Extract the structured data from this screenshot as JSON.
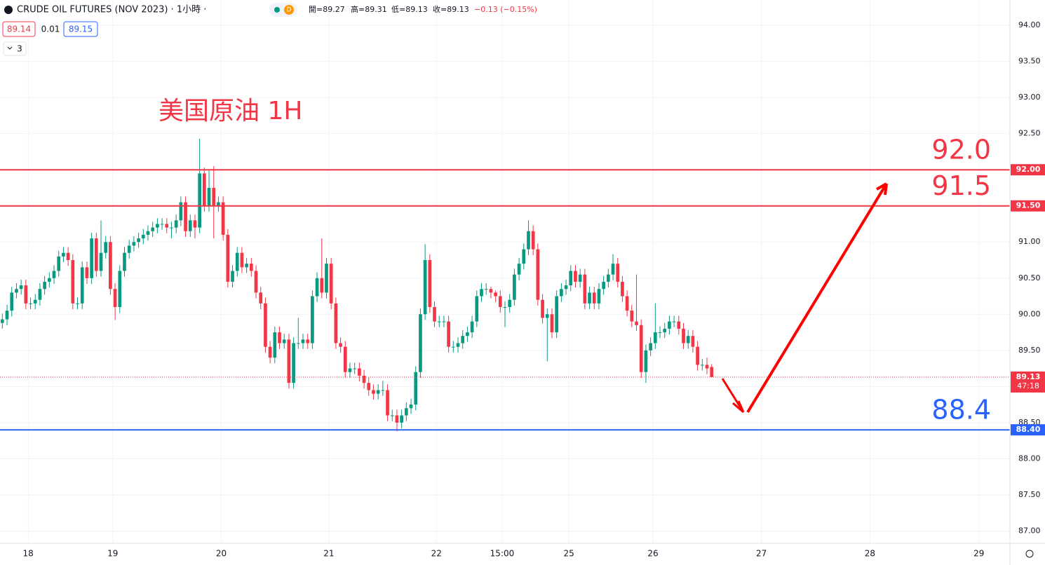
{
  "header": {
    "symbol": "CRUDE OIL FUTURES (NOV 2023) · 1小時 ·",
    "badge": "D",
    "open": "開=89.27",
    "high": "高=89.31",
    "low": "低=89.13",
    "close": "收=89.13",
    "change": "−0.13 (−0.15%)",
    "bid": "89.14",
    "spread": "0.01",
    "ask": "89.15",
    "indicators": "3"
  },
  "chart_data": {
    "type": "candlestick",
    "title": "美国原油 1H",
    "up_color": "#089981",
    "down_color": "#f23645",
    "grid": true,
    "x": [
      0,
      1,
      2,
      3,
      4,
      5,
      6,
      7,
      8,
      9,
      10,
      11,
      12,
      13,
      14,
      15,
      16,
      17,
      18,
      19,
      20,
      21,
      22,
      23,
      24,
      25,
      26,
      27,
      28,
      29,
      30,
      31,
      32,
      33,
      34,
      35,
      36,
      37,
      38,
      39,
      40,
      41,
      42,
      43,
      44,
      45,
      46,
      47,
      48,
      49,
      50,
      51,
      52,
      53,
      54,
      55,
      56,
      57,
      58,
      59,
      60,
      61,
      62,
      63,
      64,
      65,
      66,
      67,
      68,
      69,
      70,
      71,
      72,
      73,
      74,
      75,
      76,
      77,
      78,
      79,
      80,
      81,
      82,
      83,
      84,
      85,
      86,
      87,
      88,
      89,
      90,
      91,
      92,
      93,
      94,
      95,
      96,
      97,
      98,
      99,
      100,
      101,
      102,
      103,
      104,
      105,
      106,
      107,
      108,
      109,
      110,
      111,
      112,
      113,
      114,
      115,
      116,
      117,
      118,
      119,
      120,
      121,
      122,
      123,
      124,
      125,
      126,
      127,
      128,
      129,
      130,
      131,
      132,
      133,
      134,
      135,
      136,
      137,
      138,
      139,
      140,
      141,
      142,
      143,
      144,
      145,
      146,
      147,
      148,
      149,
      150,
      151
    ],
    "open": [
      89.88,
      89.93,
      90.05,
      90.3,
      90.35,
      90.4,
      90.15,
      90.15,
      90.2,
      90.35,
      90.45,
      90.5,
      90.6,
      90.8,
      90.85,
      90.75,
      90.15,
      90.15,
      90.65,
      90.5,
      91.05,
      90.6,
      90.85,
      91.0,
      90.35,
      90.1,
      90.6,
      90.85,
      90.95,
      91.0,
      91.05,
      91.1,
      91.15,
      91.2,
      91.25,
      91.25,
      91.2,
      91.2,
      91.3,
      91.55,
      91.15,
      91.3,
      91.2,
      91.95,
      91.5,
      91.75,
      91.5,
      91.55,
      91.1,
      90.45,
      90.6,
      90.85,
      90.65,
      90.7,
      90.6,
      90.3,
      90.15,
      89.55,
      89.4,
      89.75,
      89.6,
      89.65,
      89.05,
      89.6,
      89.6,
      89.65,
      89.6,
      90.25,
      90.5,
      90.3,
      90.7,
      90.15,
      89.6,
      89.55,
      89.2,
      89.25,
      89.25,
      89.15,
      89.05,
      88.95,
      88.9,
      88.95,
      88.95,
      88.6,
      88.6,
      88.5,
      88.6,
      88.7,
      88.75,
      89.2,
      90.0,
      90.75,
      90.1,
      89.9,
      89.9,
      89.9,
      89.55,
      89.55,
      89.6,
      89.7,
      89.75,
      89.9,
      90.25,
      90.35,
      90.35,
      90.3,
      90.25,
      90.1,
      90.1,
      90.2,
      90.55,
      90.7,
      90.9,
      91.15,
      90.9,
      90.2,
      89.95,
      90.0,
      89.75,
      90.25,
      90.35,
      90.4,
      90.6,
      90.45,
      90.55,
      90.15,
      90.3,
      90.15,
      90.35,
      90.45,
      90.55,
      90.7,
      90.45,
      90.25,
      90.05,
      89.9,
      89.85,
      89.2,
      89.5,
      89.6,
      89.75,
      89.75,
      89.8,
      89.9,
      89.9,
      89.8,
      89.6,
      89.7,
      89.55,
      89.3,
      89.3,
      89.27
    ],
    "high": [
      90.01,
      90.13,
      90.38,
      90.43,
      90.48,
      90.48,
      90.23,
      90.28,
      90.43,
      90.53,
      90.58,
      90.68,
      90.88,
      90.93,
      90.93,
      90.83,
      90.23,
      90.73,
      90.73,
      91.13,
      91.13,
      91.3,
      91.08,
      91.08,
      90.43,
      90.68,
      90.93,
      91.03,
      91.08,
      91.13,
      91.18,
      91.23,
      91.28,
      91.33,
      91.33,
      91.33,
      91.28,
      91.38,
      91.63,
      91.63,
      91.38,
      91.38,
      92.43,
      92.03,
      92.0,
      92.05,
      91.63,
      91.63,
      91.18,
      90.68,
      90.93,
      90.93,
      90.78,
      90.78,
      90.68,
      90.38,
      90.23,
      89.63,
      89.83,
      89.83,
      89.73,
      89.73,
      89.68,
      89.95,
      89.73,
      89.73,
      90.33,
      90.58,
      91.05,
      90.78,
      90.78,
      90.23,
      89.68,
      89.63,
      89.33,
      89.33,
      89.33,
      89.23,
      89.13,
      89.03,
      89.03,
      89.08,
      89.03,
      88.68,
      88.68,
      88.68,
      88.78,
      88.83,
      89.28,
      90.08,
      90.97,
      90.83,
      90.18,
      89.98,
      89.98,
      89.98,
      89.63,
      89.68,
      89.78,
      89.83,
      89.98,
      90.33,
      90.43,
      90.43,
      90.38,
      90.33,
      90.33,
      90.18,
      90.28,
      90.63,
      90.78,
      90.98,
      91.3,
      91.23,
      90.98,
      90.28,
      90.08,
      90.08,
      90.33,
      90.43,
      90.48,
      90.68,
      90.68,
      90.63,
      90.63,
      90.38,
      90.38,
      90.43,
      90.53,
      90.63,
      90.83,
      90.78,
      90.53,
      90.33,
      90.13,
      90.55,
      89.93,
      89.58,
      89.68,
      90.15,
      89.83,
      89.88,
      89.98,
      89.98,
      89.98,
      89.88,
      89.78,
      89.78,
      89.63,
      89.38,
      89.4,
      89.31
    ],
    "low": [
      89.8,
      89.85,
      89.97,
      90.22,
      90.27,
      90.07,
      90.07,
      90.07,
      90.12,
      90.27,
      90.37,
      90.42,
      90.52,
      90.72,
      90.67,
      90.07,
      90.07,
      90.07,
      90.42,
      90.42,
      90.52,
      90.52,
      90.77,
      90.27,
      89.92,
      90.02,
      90.52,
      90.77,
      90.87,
      90.92,
      90.97,
      91.02,
      91.07,
      91.12,
      91.17,
      91.12,
      91.05,
      91.12,
      91.22,
      91.07,
      91.07,
      91.05,
      91.12,
      91.42,
      91.42,
      91.05,
      91.42,
      91.02,
      90.37,
      90.37,
      90.52,
      90.57,
      90.57,
      90.52,
      90.22,
      90.07,
      89.47,
      89.32,
      89.32,
      89.52,
      89.52,
      88.97,
      88.97,
      89.52,
      89.52,
      89.52,
      89.52,
      90.17,
      90.22,
      90.22,
      90.07,
      89.52,
      89.47,
      89.12,
      89.12,
      89.17,
      89.07,
      88.97,
      88.87,
      88.82,
      88.82,
      88.87,
      88.52,
      88.52,
      88.38,
      88.42,
      88.52,
      88.62,
      88.67,
      89.12,
      89.92,
      90.02,
      89.82,
      89.82,
      89.82,
      89.47,
      89.47,
      89.47,
      89.52,
      89.62,
      89.67,
      89.82,
      90.17,
      90.27,
      90.22,
      90.17,
      90.02,
      89.82,
      90.02,
      90.12,
      90.47,
      90.62,
      90.82,
      90.82,
      90.12,
      89.87,
      89.35,
      89.67,
      89.67,
      90.17,
      90.27,
      90.32,
      90.37,
      90.37,
      90.07,
      90.07,
      90.07,
      90.07,
      90.27,
      90.37,
      90.47,
      90.37,
      90.17,
      89.97,
      89.82,
      89.77,
      89.12,
      89.05,
      89.42,
      89.52,
      89.67,
      89.67,
      89.72,
      89.82,
      89.72,
      89.52,
      89.52,
      89.47,
      89.22,
      89.22,
      89.17,
      89.13
    ],
    "close": [
      89.93,
      90.05,
      90.3,
      90.35,
      90.4,
      90.15,
      90.15,
      90.2,
      90.35,
      90.45,
      90.5,
      90.6,
      90.8,
      90.85,
      90.75,
      90.15,
      90.15,
      90.65,
      90.5,
      91.05,
      90.6,
      90.85,
      91.0,
      90.35,
      90.1,
      90.6,
      90.85,
      90.95,
      91.0,
      91.05,
      91.1,
      91.15,
      91.2,
      91.25,
      91.25,
      91.2,
      91.2,
      91.3,
      91.55,
      91.15,
      91.3,
      91.2,
      91.95,
      91.5,
      91.75,
      91.5,
      91.55,
      91.1,
      90.45,
      90.6,
      90.85,
      90.65,
      90.7,
      90.6,
      90.3,
      90.15,
      89.55,
      89.4,
      89.75,
      89.6,
      89.65,
      89.05,
      89.6,
      89.6,
      89.65,
      89.6,
      90.25,
      90.5,
      90.3,
      90.7,
      90.15,
      89.6,
      89.55,
      89.2,
      89.25,
      89.25,
      89.15,
      89.05,
      88.95,
      88.9,
      88.95,
      88.95,
      88.6,
      88.6,
      88.5,
      88.6,
      88.7,
      88.75,
      89.2,
      90.0,
      90.75,
      90.1,
      89.9,
      89.9,
      89.9,
      89.55,
      89.55,
      89.6,
      89.7,
      89.75,
      89.9,
      90.25,
      90.35,
      90.35,
      90.3,
      90.25,
      90.1,
      90.1,
      90.2,
      90.55,
      90.7,
      90.9,
      91.15,
      90.9,
      90.2,
      89.95,
      90.0,
      89.75,
      90.25,
      90.35,
      90.4,
      90.6,
      90.45,
      90.55,
      90.15,
      90.3,
      90.15,
      90.35,
      90.45,
      90.55,
      90.7,
      90.45,
      90.25,
      90.05,
      89.9,
      89.85,
      89.2,
      89.5,
      89.6,
      89.75,
      89.75,
      89.8,
      89.9,
      89.9,
      89.8,
      89.6,
      89.7,
      89.55,
      89.3,
      89.3,
      89.25,
      89.13
    ],
    "xlim": [
      -0.5,
      214.5
    ],
    "xticks": [
      {
        "value": 5.5,
        "label": "18"
      },
      {
        "value": 23.5,
        "label": "19"
      },
      {
        "value": 46.6,
        "label": "20"
      },
      {
        "value": 69.5,
        "label": "21"
      },
      {
        "value": 92.4,
        "label": "22"
      },
      {
        "value": 106.4,
        "label": "15:00"
      },
      {
        "value": 120.6,
        "label": "25"
      },
      {
        "value": 138.5,
        "label": "26"
      },
      {
        "value": 161.6,
        "label": "27"
      },
      {
        "value": 184.7,
        "label": "28"
      },
      {
        "value": 207.9,
        "label": "29"
      }
    ],
    "ylim": [
      86.83,
      94.35
    ],
    "yticks": [
      {
        "value": 87,
        "label": "87.00"
      },
      {
        "value": 87.5,
        "label": "87.50"
      },
      {
        "value": 88,
        "label": "88.00"
      },
      {
        "value": 88.5,
        "label": "88.50"
      },
      {
        "value": 89,
        "label": "89.00"
      },
      {
        "value": 89.5,
        "label": "89.50"
      },
      {
        "value": 90,
        "label": "90.00"
      },
      {
        "value": 90.5,
        "label": "90.50"
      },
      {
        "value": 91,
        "label": "91.00"
      },
      {
        "value": 91.5,
        "label": "91.50"
      },
      {
        "value": 92,
        "label": "92.00"
      },
      {
        "value": 92.5,
        "label": "92.50"
      },
      {
        "value": 93,
        "label": "93.00"
      },
      {
        "value": 93.5,
        "label": "93.50"
      },
      {
        "value": 94,
        "label": "94.00"
      }
    ],
    "hlines": [
      {
        "value": 92,
        "label": "92.00",
        "color": "#f23645",
        "note": {
          "value": 92,
          "label": "92.0"
        }
      },
      {
        "value": 91.5,
        "label": "91.50",
        "color": "#f23645",
        "note": {
          "value": 91.5,
          "label": "91.5"
        }
      },
      {
        "value": 88.4,
        "label": "88.40",
        "color": "#2962ff",
        "note": {
          "value": 88.4,
          "label": "88.4"
        }
      }
    ],
    "last_price": {
      "value": 89.13,
      "label": "89.13",
      "countdown": "47:18",
      "color": "#f23645"
    }
  }
}
